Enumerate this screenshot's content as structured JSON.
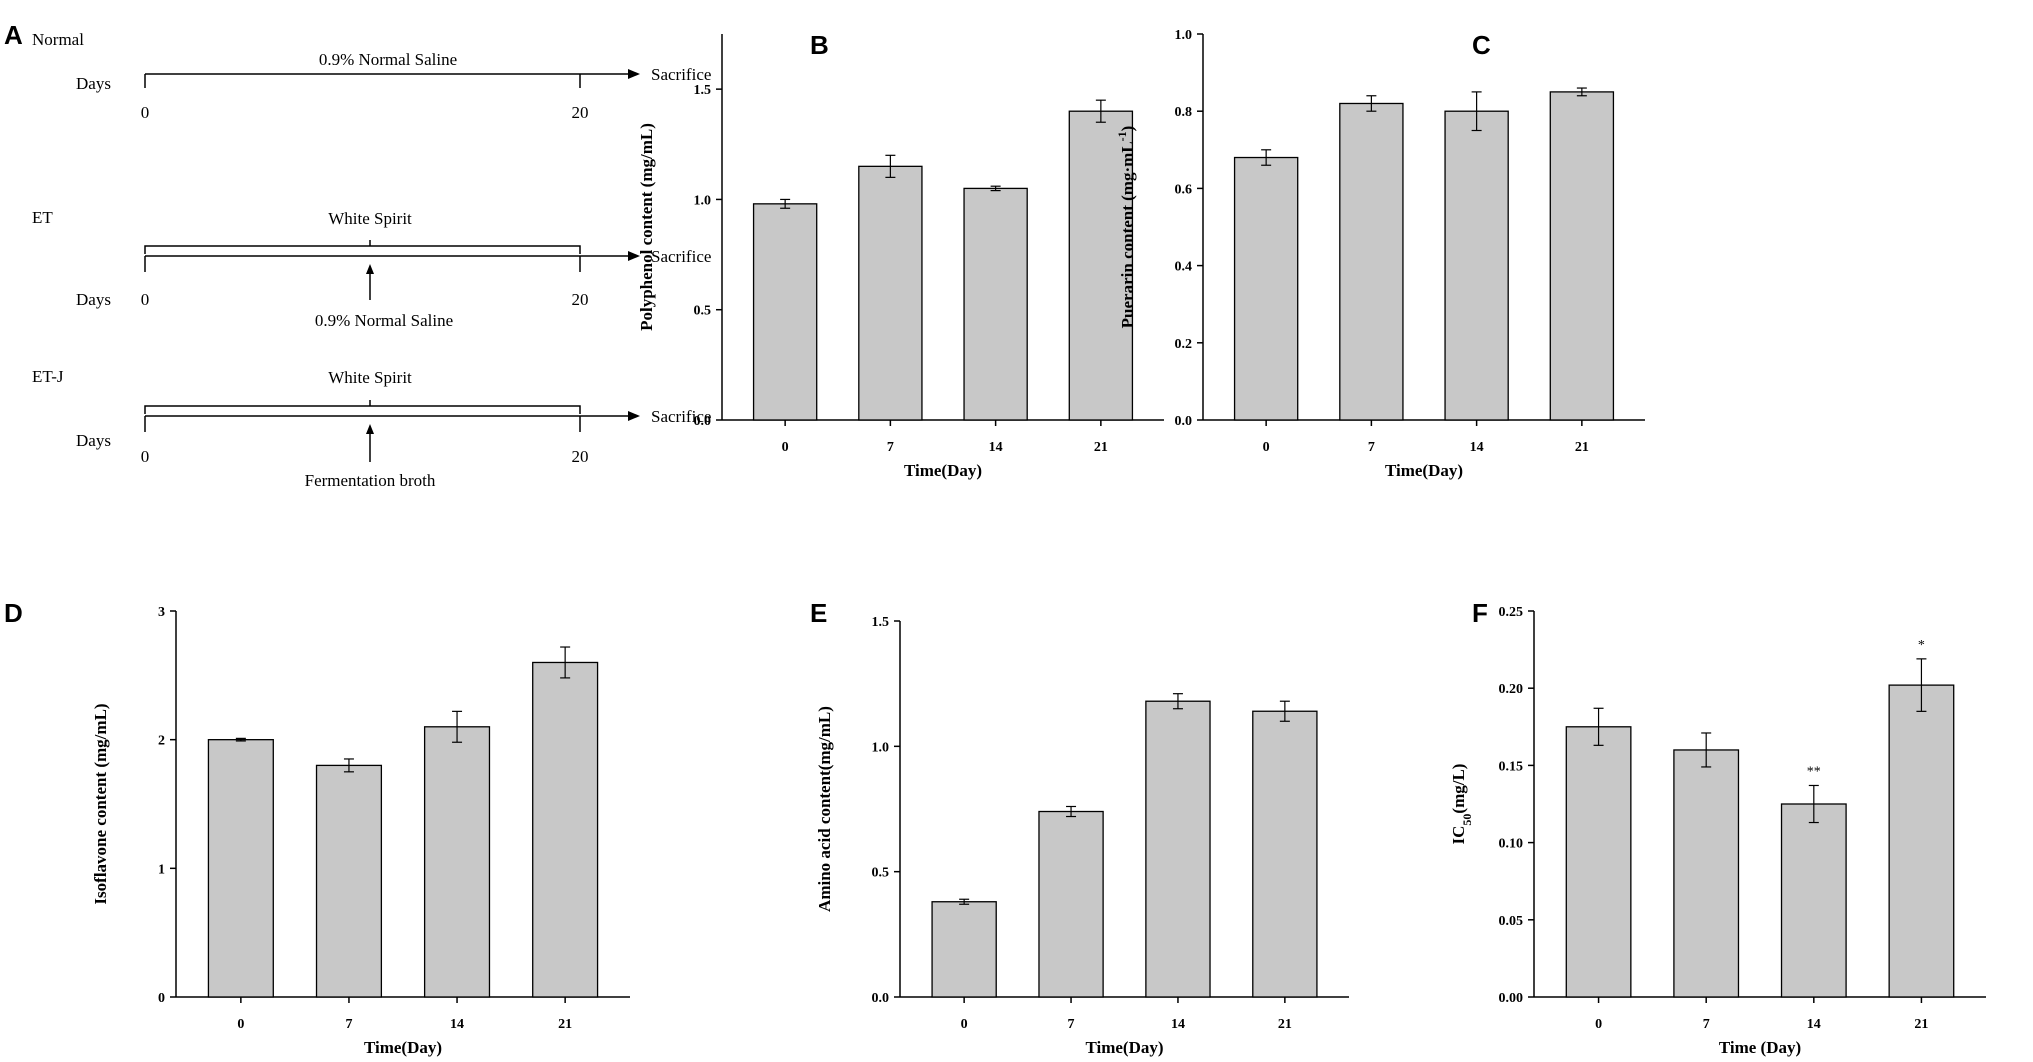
{
  "panel_a": {
    "letter": "A",
    "groups": [
      {
        "name": "Normal",
        "days_label": "Days",
        "treatment_label": "0.9% Normal Saline",
        "end_label": "Sacrifice",
        "start_tick": "0",
        "end_tick": "20",
        "secondary_label": ""
      },
      {
        "name": "ET",
        "days_label": "Days",
        "treatment_label": "White Spirit",
        "end_label": "Sacrifice",
        "start_tick": "0",
        "end_tick": "20",
        "secondary_label": "0.9% Normal Saline"
      },
      {
        "name": "ET-J",
        "days_label": "Days",
        "treatment_label": "White Spirit",
        "end_label": "Sacrifice",
        "start_tick": "0",
        "end_tick": "20",
        "secondary_label": "Fermentation broth"
      }
    ]
  },
  "chart_data": [
    {
      "letter": "B",
      "type": "bar",
      "categories": [
        "0",
        "7",
        "14",
        "21"
      ],
      "values": [
        0.98,
        1.15,
        1.05,
        1.4
      ],
      "errors": [
        0.02,
        0.05,
        0.01,
        0.05
      ],
      "annotations": [
        "",
        "",
        "",
        ""
      ],
      "xlabel": "Time(Day)",
      "ylabel": "Polyphenol content (mg/mL)",
      "ylim": [
        0,
        1.75
      ],
      "yticks": [
        "0.0",
        "0.5",
        "1.0",
        "1.5"
      ]
    },
    {
      "letter": "C",
      "type": "bar",
      "categories": [
        "0",
        "7",
        "14",
        "21"
      ],
      "values": [
        0.68,
        0.82,
        0.8,
        0.85
      ],
      "errors": [
        0.02,
        0.02,
        0.05,
        0.01
      ],
      "annotations": [
        "",
        "",
        "",
        ""
      ],
      "xlabel": "Time(Day)",
      "ylabel": "Puerarin content (mg·mL",
      "ylabel_sup": "-1",
      "ylabel_tail": ")",
      "ylim": [
        0,
        1.0
      ],
      "yticks": [
        "0.0",
        "0.2",
        "0.4",
        "0.6",
        "0.8",
        "1.0"
      ]
    },
    {
      "letter": "D",
      "type": "bar",
      "categories": [
        "0",
        "7",
        "14",
        "21"
      ],
      "values": [
        2.0,
        1.8,
        2.1,
        2.6
      ],
      "errors": [
        0.01,
        0.05,
        0.12,
        0.12
      ],
      "annotations": [
        "",
        "",
        "",
        ""
      ],
      "xlabel": "Time(Day)",
      "ylabel": "Isoflavone content (mg/mL)",
      "ylim": [
        0,
        3
      ],
      "yticks": [
        "0",
        "1",
        "2",
        "3"
      ]
    },
    {
      "letter": "E",
      "type": "bar",
      "categories": [
        "0",
        "7",
        "14",
        "21"
      ],
      "values": [
        0.38,
        0.74,
        1.18,
        1.14
      ],
      "errors": [
        0.01,
        0.02,
        0.03,
        0.04
      ],
      "annotations": [
        "",
        "",
        "",
        ""
      ],
      "xlabel": "Time(Day)",
      "ylabel": "Amino acid content(mg/mL)",
      "ylim": [
        0,
        1.5
      ],
      "yticks": [
        "0.0",
        "0.5",
        "1.0",
        "1.5"
      ]
    },
    {
      "letter": "F",
      "type": "bar",
      "categories": [
        "0",
        "7",
        "14",
        "21"
      ],
      "values": [
        0.175,
        0.16,
        0.125,
        0.202
      ],
      "errors": [
        0.012,
        0.011,
        0.012,
        0.017
      ],
      "annotations": [
        "",
        "",
        "**",
        "*"
      ],
      "xlabel": "Time (Day)",
      "ylabel": "IC",
      "ylabel_sub": "50",
      "ylabel_tail": "(mg/L)",
      "ylim": [
        0,
        0.25
      ],
      "yticks": [
        "0.00",
        "0.05",
        "0.10",
        "0.15",
        "0.20",
        "0.25"
      ]
    }
  ],
  "colors": {
    "bar_fill": "#c8c8c8",
    "bar_stroke": "#000000",
    "axis": "#000000",
    "background": "#ffffff"
  }
}
